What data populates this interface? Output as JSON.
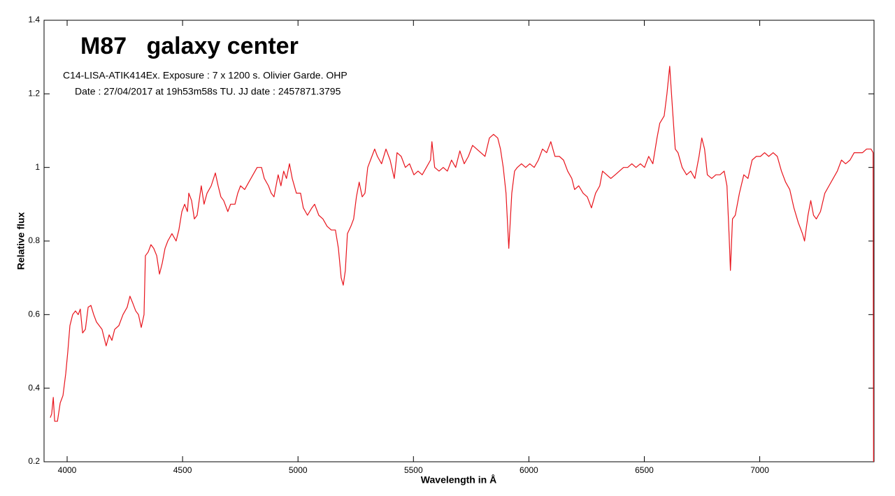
{
  "chart_data": {
    "type": "line",
    "title": "M87   galaxy center",
    "annotations": [
      "C14-LISA-ATIK414Ex. Exposure : 7 x 1200 s. Olivier Garde. OHP",
      "Date : 27/04/2017 at 19h53m58s TU. JJ date : 2457871.3795"
    ],
    "xlabel": "Wavelength in Å",
    "ylabel": "Relative flux",
    "color": "#e8141c",
    "xlim": [
      3900,
      7495
    ],
    "ylim": [
      0.2,
      1.4
    ],
    "xticks": [
      4000,
      4500,
      5000,
      5500,
      6000,
      6500,
      7000
    ],
    "yticks": [
      0.2,
      0.4,
      0.6,
      0.8,
      1,
      1.2,
      1.4
    ],
    "x": [
      3927,
      3933,
      3940,
      3946,
      3958,
      3970,
      3982,
      3994,
      4003,
      4012,
      4024,
      4036,
      4048,
      4057,
      4067,
      4079,
      4091,
      4103,
      4115,
      4127,
      4139,
      4151,
      4163,
      4169,
      4182,
      4194,
      4206,
      4224,
      4242,
      4260,
      4272,
      4285,
      4297,
      4309,
      4321,
      4333,
      4339,
      4351,
      4363,
      4375,
      4388,
      4400,
      4412,
      4424,
      4436,
      4454,
      4472,
      4484,
      4497,
      4509,
      4521,
      4527,
      4539,
      4551,
      4563,
      4581,
      4593,
      4606,
      4624,
      4642,
      4654,
      4666,
      4678,
      4696,
      4708,
      4727,
      4739,
      4751,
      4769,
      4787,
      4805,
      4823,
      4842,
      4854,
      4872,
      4884,
      4896,
      4914,
      4926,
      4938,
      4950,
      4963,
      4975,
      4993,
      5011,
      5023,
      5041,
      5060,
      5072,
      5090,
      5108,
      5126,
      5144,
      5162,
      5175,
      5187,
      5196,
      5205,
      5214,
      5229,
      5241,
      5253,
      5265,
      5278,
      5290,
      5302,
      5320,
      5332,
      5344,
      5362,
      5381,
      5399,
      5417,
      5429,
      5447,
      5465,
      5483,
      5502,
      5520,
      5538,
      5556,
      5574,
      5580,
      5592,
      5611,
      5629,
      5647,
      5665,
      5683,
      5701,
      5720,
      5738,
      5756,
      5774,
      5792,
      5810,
      5829,
      5847,
      5865,
      5877,
      5889,
      5901,
      5913,
      5926,
      5938,
      5950,
      5968,
      5986,
      6004,
      6023,
      6041,
      6059,
      6077,
      6095,
      6113,
      6132,
      6150,
      6168,
      6186,
      6198,
      6216,
      6235,
      6253,
      6271,
      6289,
      6307,
      6319,
      6337,
      6355,
      6374,
      6392,
      6410,
      6428,
      6446,
      6464,
      6483,
      6501,
      6519,
      6537,
      6555,
      6567,
      6586,
      6598,
      6610,
      6622,
      6634,
      6646,
      6664,
      6683,
      6701,
      6719,
      6737,
      6749,
      6761,
      6773,
      6792,
      6810,
      6828,
      6846,
      6858,
      6867,
      6873,
      6882,
      6894,
      6912,
      6931,
      6949,
      6967,
      6985,
      7003,
      7021,
      7039,
      7058,
      7076,
      7094,
      7112,
      7130,
      7148,
      7167,
      7185,
      7194,
      7209,
      7221,
      7233,
      7245,
      7263,
      7282,
      7300,
      7318,
      7336,
      7354,
      7372,
      7391,
      7409,
      7427,
      7445,
      7463,
      7482,
      7491,
      7493
    ],
    "values": [
      0.32,
      0.33,
      0.375,
      0.31,
      0.31,
      0.36,
      0.38,
      0.44,
      0.5,
      0.57,
      0.6,
      0.61,
      0.6,
      0.615,
      0.55,
      0.56,
      0.62,
      0.625,
      0.6,
      0.58,
      0.57,
      0.56,
      0.53,
      0.515,
      0.545,
      0.53,
      0.56,
      0.57,
      0.6,
      0.62,
      0.65,
      0.63,
      0.61,
      0.6,
      0.565,
      0.6,
      0.76,
      0.77,
      0.79,
      0.78,
      0.76,
      0.71,
      0.74,
      0.78,
      0.8,
      0.82,
      0.8,
      0.83,
      0.88,
      0.9,
      0.88,
      0.93,
      0.91,
      0.86,
      0.87,
      0.95,
      0.9,
      0.93,
      0.95,
      0.985,
      0.95,
      0.92,
      0.91,
      0.88,
      0.9,
      0.9,
      0.93,
      0.95,
      0.94,
      0.96,
      0.98,
      1.0,
      1.0,
      0.97,
      0.95,
      0.93,
      0.92,
      0.98,
      0.95,
      0.99,
      0.97,
      1.01,
      0.97,
      0.93,
      0.93,
      0.89,
      0.87,
      0.89,
      0.9,
      0.87,
      0.86,
      0.84,
      0.83,
      0.83,
      0.78,
      0.7,
      0.68,
      0.72,
      0.82,
      0.84,
      0.86,
      0.92,
      0.96,
      0.92,
      0.93,
      1.0,
      1.03,
      1.05,
      1.03,
      1.01,
      1.05,
      1.02,
      0.97,
      1.04,
      1.03,
      1.0,
      1.01,
      0.98,
      0.99,
      0.98,
      1.0,
      1.02,
      1.07,
      1.0,
      0.99,
      1.0,
      0.99,
      1.02,
      1.0,
      1.045,
      1.01,
      1.03,
      1.06,
      1.05,
      1.04,
      1.03,
      1.08,
      1.09,
      1.08,
      1.05,
      1.0,
      0.93,
      0.78,
      0.93,
      0.99,
      1.0,
      1.01,
      1.0,
      1.01,
      1.0,
      1.02,
      1.05,
      1.04,
      1.07,
      1.03,
      1.03,
      1.02,
      0.99,
      0.97,
      0.94,
      0.95,
      0.93,
      0.92,
      0.89,
      0.93,
      0.95,
      0.99,
      0.98,
      0.97,
      0.98,
      0.99,
      1.0,
      1.0,
      1.01,
      1.0,
      1.01,
      1.0,
      1.03,
      1.01,
      1.08,
      1.12,
      1.14,
      1.2,
      1.275,
      1.16,
      1.05,
      1.04,
      1.0,
      0.98,
      0.99,
      0.97,
      1.03,
      1.08,
      1.05,
      0.98,
      0.97,
      0.98,
      0.98,
      0.99,
      0.95,
      0.82,
      0.72,
      0.86,
      0.87,
      0.93,
      0.98,
      0.97,
      1.02,
      1.03,
      1.03,
      1.04,
      1.03,
      1.04,
      1.03,
      0.99,
      0.96,
      0.94,
      0.89,
      0.85,
      0.82,
      0.8,
      0.87,
      0.91,
      0.87,
      0.86,
      0.88,
      0.93,
      0.95,
      0.97,
      0.99,
      1.02,
      1.01,
      1.02,
      1.04,
      1.04,
      1.04,
      1.05,
      1.05,
      1.04,
      0.2
    ]
  }
}
